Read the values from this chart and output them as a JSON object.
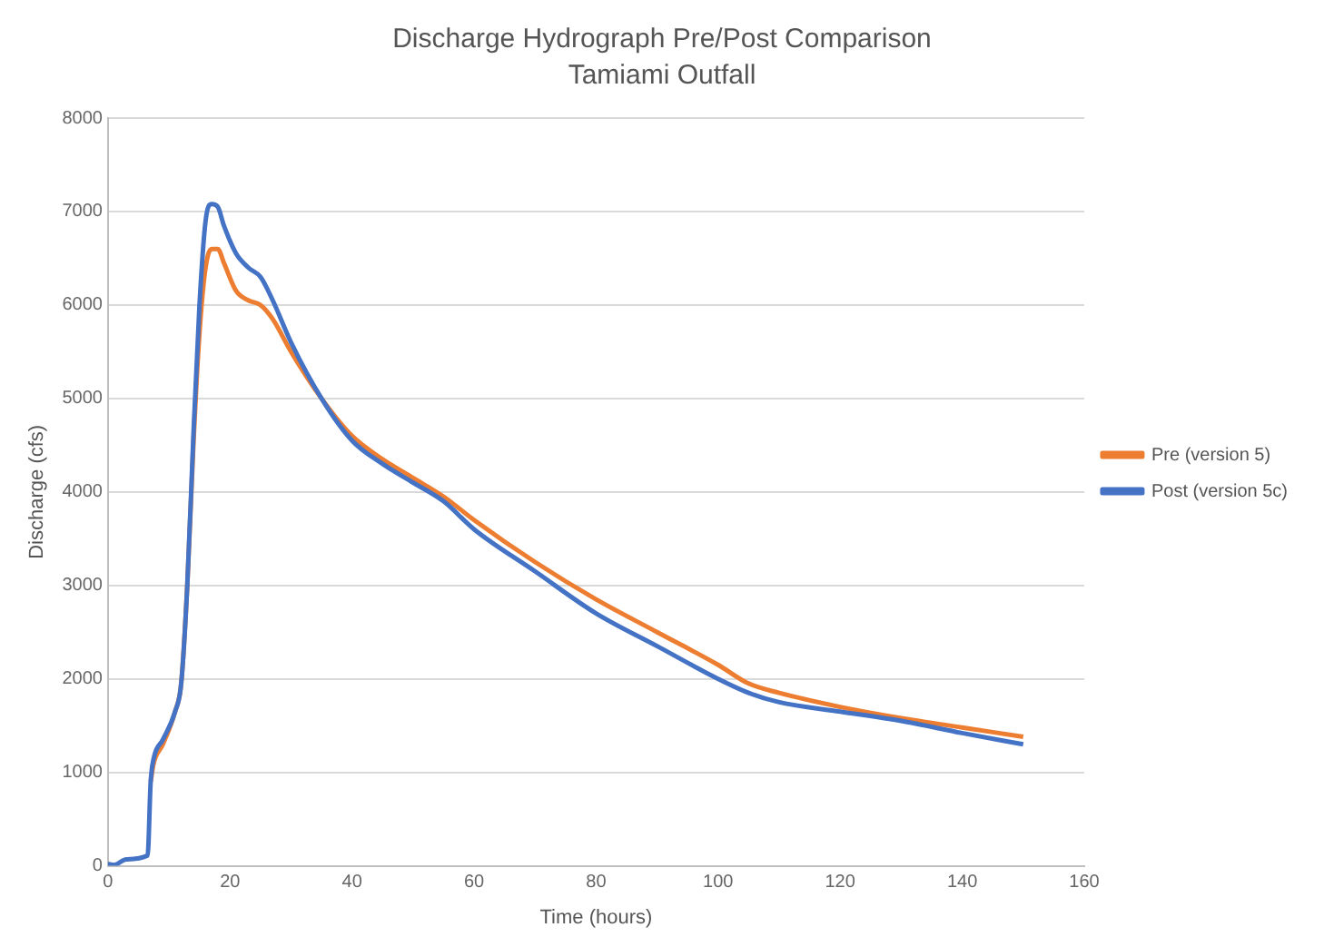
{
  "chart_data": {
    "type": "line",
    "title": "Discharge Hydrograph Pre/Post Comparison",
    "subtitle": "Tamiami Outfall",
    "xlabel": "Time (hours)",
    "ylabel": "Discharge (cfs)",
    "xlim": [
      0,
      160
    ],
    "xticks": [
      0,
      20,
      40,
      60,
      80,
      100,
      120,
      140,
      160
    ],
    "ylim": [
      0,
      8000
    ],
    "yticks": [
      0,
      1000,
      2000,
      3000,
      4000,
      5000,
      6000,
      7000,
      8000
    ],
    "grid": "y",
    "legend": "right",
    "marker": "none",
    "line_style": "solid",
    "series": [
      {
        "name": "Pre (version 5)",
        "color": "#ed7d31",
        "x": [
          7,
          7.5,
          9,
          11,
          12,
          13,
          14,
          15,
          16,
          17,
          18,
          19,
          21,
          23,
          25,
          27,
          30,
          35,
          40,
          45,
          50,
          55,
          60,
          70,
          80,
          90,
          100,
          105,
          110,
          120,
          130,
          140,
          150
        ],
        "values": [
          900,
          1100,
          1300,
          1650,
          1950,
          3000,
          4500,
          5700,
          6400,
          6600,
          6600,
          6450,
          6150,
          6050,
          6000,
          5850,
          5500,
          5000,
          4600,
          4350,
          4150,
          3950,
          3700,
          3250,
          2850,
          2500,
          2150,
          1950,
          1850,
          1700,
          1580,
          1480,
          1380
        ]
      },
      {
        "name": "Post (version 5c)",
        "color": "#4472c4",
        "x": [
          0,
          1,
          3,
          6.5,
          7,
          7.5,
          9,
          11,
          12,
          13,
          14,
          15,
          16,
          17,
          18,
          19,
          21,
          23,
          25,
          27,
          30,
          35,
          40,
          45,
          50,
          55,
          60,
          70,
          80,
          90,
          100,
          105,
          110,
          120,
          130,
          140,
          150
        ],
        "values": [
          20,
          10,
          70,
          110,
          900,
          1150,
          1350,
          1650,
          1950,
          3000,
          4600,
          6000,
          6900,
          7080,
          7050,
          6850,
          6550,
          6400,
          6300,
          6050,
          5600,
          5000,
          4550,
          4300,
          4100,
          3900,
          3600,
          3150,
          2700,
          2350,
          2000,
          1850,
          1750,
          1650,
          1550,
          1420,
          1300
        ]
      }
    ]
  }
}
